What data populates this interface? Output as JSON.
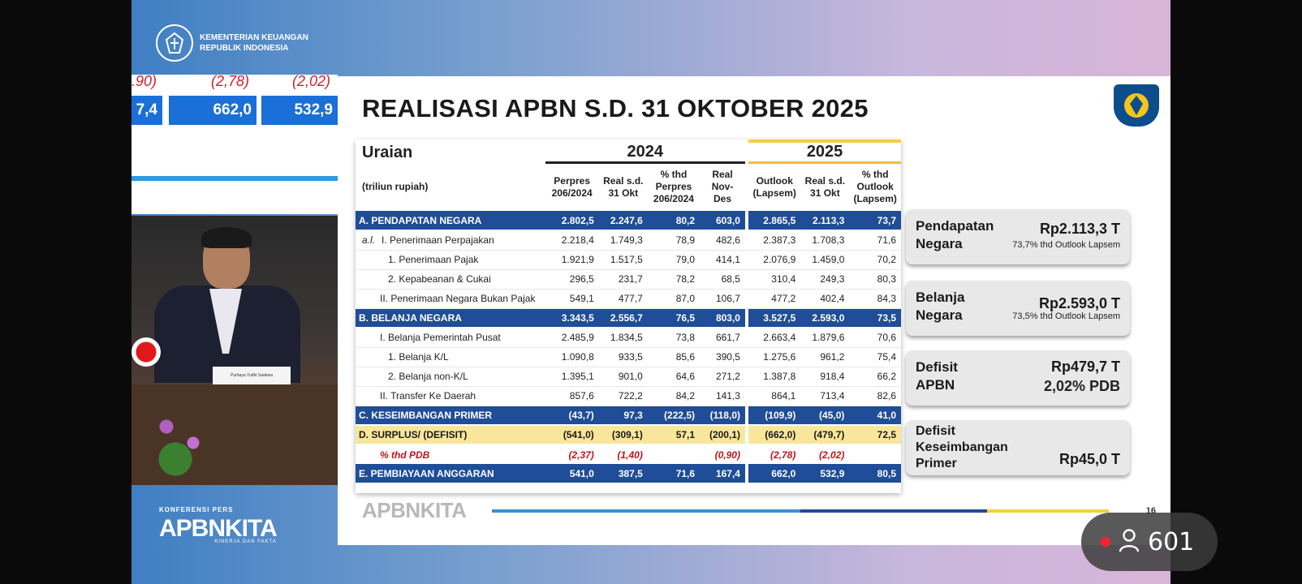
{
  "header": {
    "ministry_line1": "KEMENTERIAN KEUANGAN",
    "ministry_line2": "REPUBLIK INDONESIA"
  },
  "left_panel": {
    "partial_values": [
      ".90)",
      "(2,78)",
      "(2,02)"
    ],
    "bar_values": [
      "7,4",
      "662,0",
      "532,9"
    ]
  },
  "nameplate": "Purbaya Yudhi Sadewa",
  "conference": {
    "label": "KONFERENSI PERS",
    "logo": "APBNKITA",
    "tagline": "KINERJA DAN FAKTA"
  },
  "slide": {
    "title": "REALISASI APBN S.D. 31 OKTOBER 2025",
    "footer_logo": "APBNKITA",
    "page_number": "16",
    "table": {
      "uraian_header": "Uraian",
      "unit": "(triliun rupiah)",
      "year_2024": "2024",
      "year_2025": "2025",
      "col_headers": [
        "Perpres 206/2024",
        "Real s.d. 31 Okt",
        "% thd Perpres 206/2024",
        "Real Nov-Des",
        "Outlook (Lapsem)",
        "Real s.d. 31 Okt",
        "% thd Outlook (Lapsem)"
      ],
      "rows": [
        {
          "label": "A. PENDAPATAN NEGARA",
          "values": [
            "2.802,5",
            "2.247,6",
            "80,2",
            "603,0",
            "2.865,5",
            "2.113,3",
            "73,7"
          ]
        },
        {
          "prefix": "a.l.",
          "label": "I. Penerimaan Perpajakan",
          "values": [
            "2.218,4",
            "1.749,3",
            "78,9",
            "482,6",
            "2.387,3",
            "1.708,3",
            "71,6"
          ]
        },
        {
          "label": "1. Penerimaan Pajak",
          "values": [
            "1.921,9",
            "1.517,5",
            "79,0",
            "414,1",
            "2.076,9",
            "1.459,0",
            "70,2"
          ]
        },
        {
          "label": "2. Kepabeanan & Cukai",
          "values": [
            "296,5",
            "231,7",
            "78,2",
            "68,5",
            "310,4",
            "249,3",
            "80,3"
          ]
        },
        {
          "label": "II. Penerimaan Negara Bukan Pajak",
          "values": [
            "549,1",
            "477,7",
            "87,0",
            "106,7",
            "477,2",
            "402,4",
            "84,3"
          ]
        },
        {
          "label": "B. BELANJA NEGARA",
          "values": [
            "3.343,5",
            "2.556,7",
            "76,5",
            "803,0",
            "3.527,5",
            "2.593,0",
            "73,5"
          ]
        },
        {
          "label": "I. Belanja Pemerintah Pusat",
          "values": [
            "2.485,9",
            "1.834,5",
            "73,8",
            "661,7",
            "2.663,4",
            "1.879,6",
            "70,6"
          ]
        },
        {
          "label": "1. Belanja K/L",
          "values": [
            "1.090,8",
            "933,5",
            "85,6",
            "390,5",
            "1.275,6",
            "961,2",
            "75,4"
          ]
        },
        {
          "label": "2. Belanja non-K/L",
          "values": [
            "1.395,1",
            "901,0",
            "64,6",
            "271,2",
            "1.387,8",
            "918,4",
            "66,2"
          ]
        },
        {
          "label": "II. Transfer Ke Daerah",
          "values": [
            "857,6",
            "722,2",
            "84,2",
            "141,3",
            "864,1",
            "713,4",
            "82,6"
          ]
        },
        {
          "label": "C. KESEIMBANGAN PRIMER",
          "values": [
            "(43,7)",
            "97,3",
            "(222,5)",
            "(118,0)",
            "(109,9)",
            "(45,0)",
            "41,0"
          ]
        },
        {
          "label": "D. SURPLUS/ (DEFISIT)",
          "values": [
            "(541,0)",
            "(309,1)",
            "57,1",
            "(200,1)",
            "(662,0)",
            "(479,7)",
            "72,5"
          ]
        },
        {
          "label": "% thd PDB",
          "values": [
            "(2,37)",
            "(1,40)",
            "",
            "(0,90)",
            "(2,78)",
            "(2,02)",
            ""
          ]
        },
        {
          "label": "E. PEMBIAYAAN ANGGARAN",
          "values": [
            "541,0",
            "387,5",
            "71,6",
            "167,4",
            "662,0",
            "532,9",
            "80,5"
          ]
        }
      ]
    },
    "summary_cards": [
      {
        "label": "Pendapatan Negara",
        "value": "Rp2.113,3 T",
        "sub": "73,7% thd Outlook Lapsem"
      },
      {
        "label": "Belanja Negara",
        "value": "Rp2.593,0 T",
        "sub": "73,5% thd Outlook Lapsem"
      },
      {
        "label": "Defisit APBN",
        "value": "Rp479,7 T",
        "sub": "2,02% PDB"
      },
      {
        "label": "Defisit Keseimbangan Primer",
        "value": "Rp45,0 T",
        "sub": ""
      }
    ]
  },
  "viewer": {
    "count": "601"
  },
  "colors": {
    "table_blue": "#1f4d97",
    "gold": "#f6cf3e",
    "pdb_red": "#c0141c",
    "live": "#ff2030"
  }
}
